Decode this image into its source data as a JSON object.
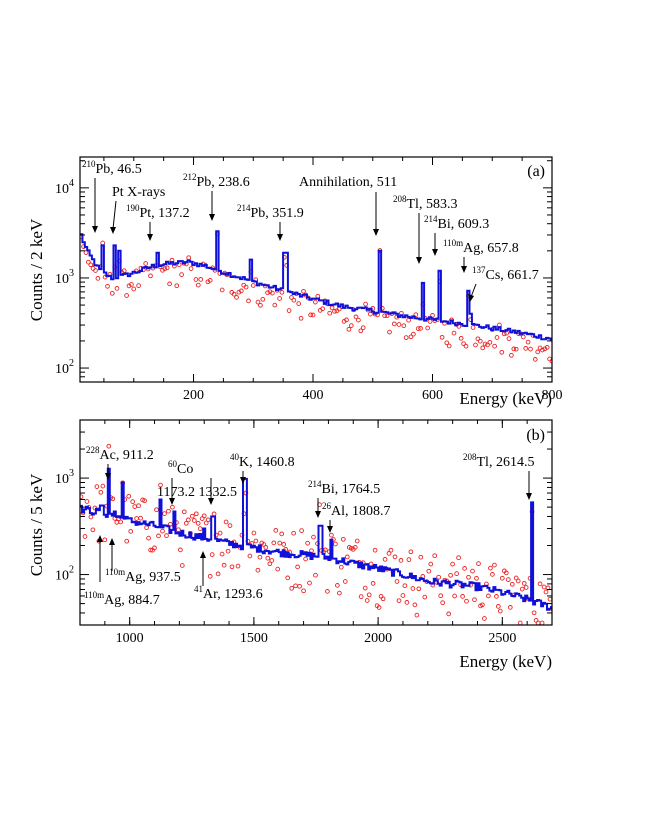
{
  "chart_data": [
    {
      "panel": "(a)",
      "type": "line",
      "ylabel": "Counts / 2 keV",
      "xlabel": "Energy (keV)",
      "xlim": [
        10,
        800
      ],
      "ylim": [
        70,
        22000
      ],
      "y_scale": "log",
      "x_ticks": [
        200,
        400,
        600,
        800
      ],
      "y_ticks": [
        {
          "value": 100,
          "base": "10",
          "exp": "2"
        },
        {
          "value": 1000,
          "base": "10",
          "exp": "3"
        },
        {
          "value": 10000,
          "base": "10",
          "exp": "4"
        }
      ],
      "colors": {
        "line": "#1010d8",
        "points": "#ee2222"
      },
      "continuum": [
        [
          10,
          3000
        ],
        [
          20,
          2000
        ],
        [
          40,
          1250
        ],
        [
          60,
          1000
        ],
        [
          80,
          1050
        ],
        [
          100,
          1150
        ],
        [
          130,
          1350
        ],
        [
          160,
          1450
        ],
        [
          190,
          1500
        ],
        [
          220,
          1350
        ],
        [
          260,
          1100
        ],
        [
          300,
          900
        ],
        [
          350,
          720
        ],
        [
          400,
          580
        ],
        [
          450,
          480
        ],
        [
          500,
          430
        ],
        [
          560,
          370
        ],
        [
          620,
          330
        ],
        [
          680,
          290
        ],
        [
          740,
          250
        ],
        [
          800,
          210
        ]
      ],
      "peaks": [
        {
          "label": "²¹⁰Pb, 46.5",
          "energy": 46.5,
          "counts": 2300
        },
        {
          "label": "Pt X-rays",
          "energy": 66,
          "counts": 2300
        },
        {
          "label": "Pt X-rays",
          "energy": 75,
          "counts": 2000
        },
        {
          "label": "¹⁹⁰Pt, 137.2",
          "energy": 137.2,
          "counts": 1900
        },
        {
          "label": "²¹²Pb, 238.6",
          "energy": 238.6,
          "counts": 3300
        },
        {
          "label": "",
          "energy": 295,
          "counts": 1600
        },
        {
          "label": "²¹⁴Pb, 351.9",
          "energy": 351.9,
          "counts": 1900
        },
        {
          "label": "Annihilation, 511",
          "energy": 511,
          "counts": 2000
        },
        {
          "label": "²⁰⁸Tl, 583.3",
          "energy": 583.3,
          "counts": 880
        },
        {
          "label": "²¹⁴Bi, 609.3",
          "energy": 609.3,
          "counts": 1200
        },
        {
          "label": "¹¹⁰ᵐAg, 657.8",
          "energy": 657.8,
          "counts": 720
        },
        {
          "label": "¹³⁷Cs, 661.7",
          "energy": 661.7,
          "counts": 400
        }
      ]
    },
    {
      "panel": "(b)",
      "type": "line",
      "ylabel": "Counts / 5 keV",
      "xlabel": "Energy (keV)",
      "xlim": [
        800,
        2700
      ],
      "ylim": [
        30,
        4000
      ],
      "y_scale": "log",
      "x_ticks": [
        1000,
        1500,
        2000,
        2500
      ],
      "y_ticks": [
        {
          "value": 100,
          "base": "10",
          "exp": "2"
        },
        {
          "value": 1000,
          "base": "10",
          "exp": "3"
        }
      ],
      "colors": {
        "line": "#1010d8",
        "points": "#ee2222"
      },
      "continuum": [
        [
          800,
          480
        ],
        [
          900,
          430
        ],
        [
          1000,
          360
        ],
        [
          1100,
          320
        ],
        [
          1200,
          270
        ],
        [
          1300,
          240
        ],
        [
          1400,
          210
        ],
        [
          1500,
          190
        ],
        [
          1600,
          170
        ],
        [
          1700,
          160
        ],
        [
          1800,
          150
        ],
        [
          1900,
          130
        ],
        [
          2000,
          115
        ],
        [
          2100,
          100
        ],
        [
          2200,
          85
        ],
        [
          2300,
          80
        ],
        [
          2400,
          75
        ],
        [
          2500,
          65
        ],
        [
          2600,
          55
        ],
        [
          2700,
          45
        ]
      ],
      "peaks": [
        {
          "label": "¹¹⁰ᵐAg, 884.7",
          "energy": 884.7,
          "counts": 520
        },
        {
          "label": "²²⁸Ac, 911.2",
          "energy": 911.2,
          "counts": 1250
        },
        {
          "label": "¹¹⁰ᵐAg, 937.5",
          "energy": 937.5,
          "counts": 450
        },
        {
          "label": "",
          "energy": 965,
          "counts": 900
        },
        {
          "label": "",
          "energy": 1120,
          "counts": 600
        },
        {
          "label": "⁶⁰Co 1173.2",
          "energy": 1173.2,
          "counts": 450
        },
        {
          "label": "⁴¹Ar, 1293.6",
          "energy": 1293.6,
          "counts": 300
        },
        {
          "label": "⁶⁰Co 1332.5",
          "energy": 1332.5,
          "counts": 400
        },
        {
          "label": "⁴⁰K, 1460.8",
          "energy": 1460.8,
          "counts": 980
        },
        {
          "label": "²¹⁴Bi, 1764.5",
          "energy": 1764.5,
          "counts": 320
        },
        {
          "label": "²⁶Al, 1808.7",
          "energy": 1808.7,
          "counts": 230
        },
        {
          "label": "²⁰⁸Tl, 2614.5",
          "energy": 2614.5,
          "counts": 560
        }
      ]
    }
  ],
  "annotations_a": {
    "panel_label": "(a)",
    "pb210": {
      "iso": "210",
      "text": "Pb, 46.5"
    },
    "ptx": {
      "text": "Pt X-rays"
    },
    "pt190": {
      "iso": "190",
      "text": "Pt, 137.2"
    },
    "pb212": {
      "iso": "212",
      "text": "Pb, 238.6"
    },
    "pb214": {
      "iso": "214",
      "text": "Pb, 351.9"
    },
    "annih": {
      "text": "Annihilation, 511"
    },
    "tl208": {
      "iso": "208",
      "text": "Tl, 583.3"
    },
    "bi214": {
      "iso": "214",
      "text": "Bi, 609.3"
    },
    "ag110": {
      "iso": "110m",
      "text": "Ag, 657.8"
    },
    "cs137": {
      "iso": "137",
      "text": "Cs, 661.7"
    }
  },
  "annotations_b": {
    "panel_label": "(b)",
    "ac228": {
      "iso": "228",
      "text": "Ac, 911.2"
    },
    "co60": {
      "iso": "60",
      "text": "Co"
    },
    "co60_e": {
      "text": "1173.2  1332.5"
    },
    "k40": {
      "iso": "40",
      "text": "K, 1460.8"
    },
    "bi214": {
      "iso": "214",
      "text": "Bi, 1764.5"
    },
    "al26": {
      "iso": "26",
      "text": "Al, 1808.7"
    },
    "tl208": {
      "iso": "208",
      "text": "Tl, 2614.5"
    },
    "ag937": {
      "iso": "110m",
      "text": "Ag, 937.5"
    },
    "ag884": {
      "iso": "110m",
      "text": "Ag, 884.7"
    },
    "ar41": {
      "iso": "41",
      "text": "Ar, 1293.6"
    }
  }
}
